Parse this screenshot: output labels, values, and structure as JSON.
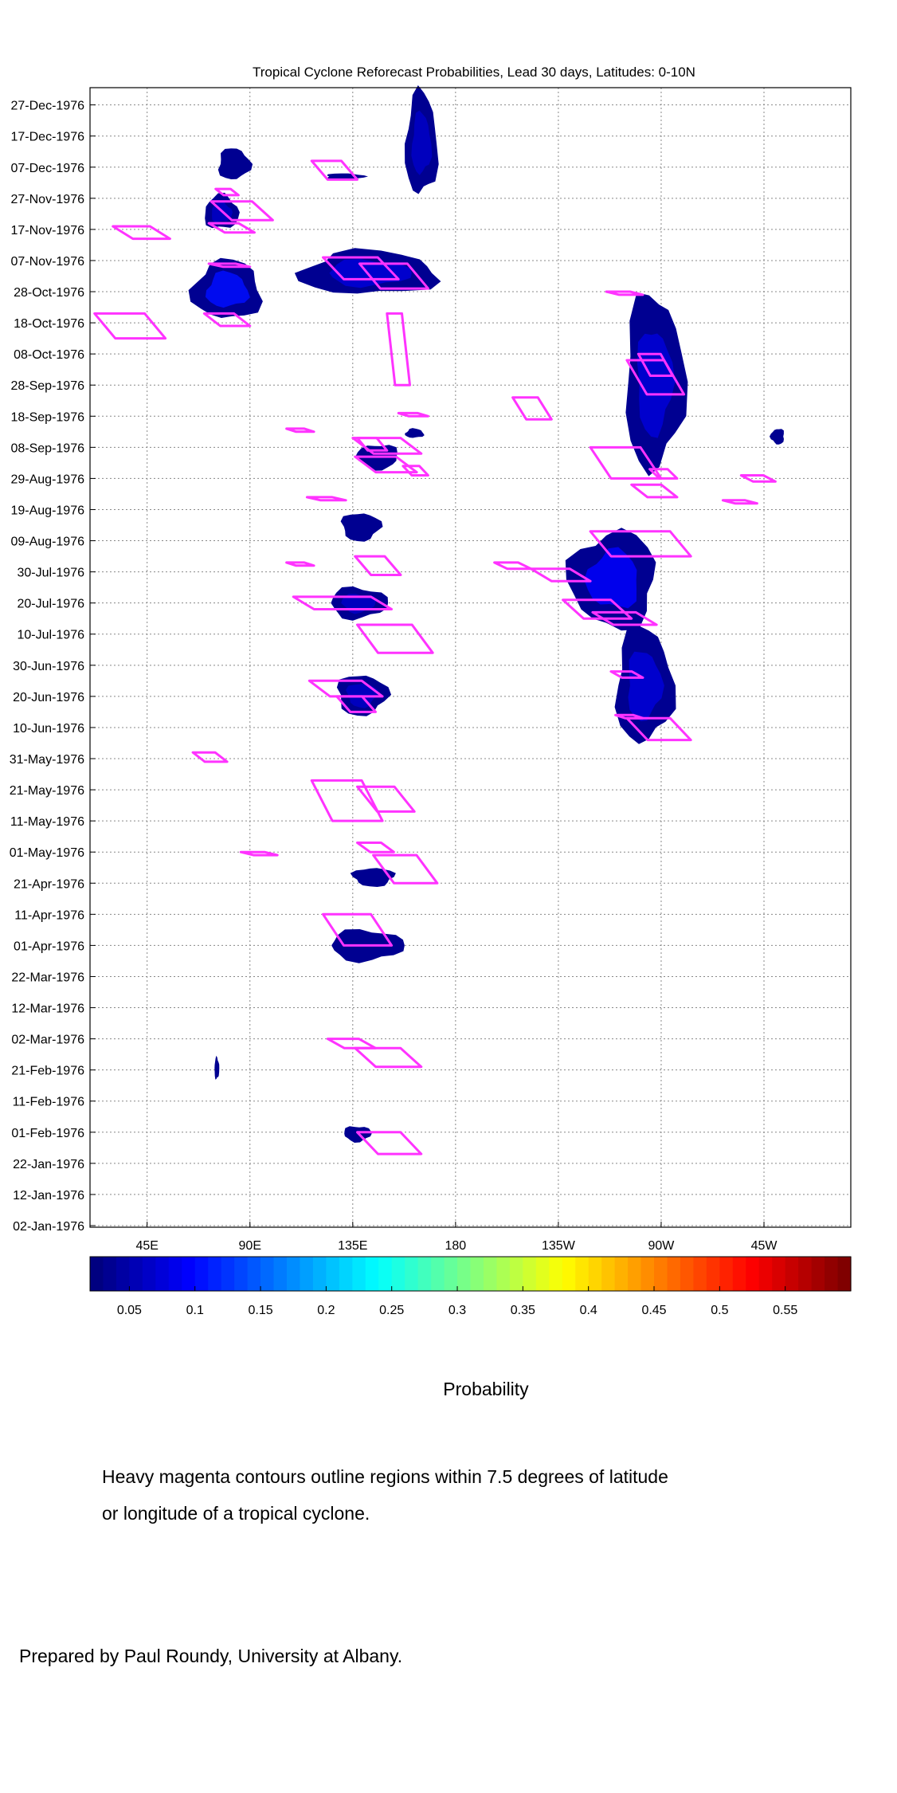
{
  "chart_data": {
    "type": "heatmap",
    "title": "Tropical Cyclone Reforecast Probabilities, Lead 30 days, Latitudes: 0-10N",
    "xlabel": "",
    "ylabel": "",
    "x_axis": {
      "unit": "degrees longitude east",
      "range": [
        20,
        353
      ],
      "ticks": [
        {
          "lon": 45,
          "label": "45E"
        },
        {
          "lon": 90,
          "label": "90E"
        },
        {
          "lon": 135,
          "label": "135E"
        },
        {
          "lon": 180,
          "label": "180"
        },
        {
          "lon": 225,
          "label": "135W"
        },
        {
          "lon": 270,
          "label": "90W"
        },
        {
          "lon": 315,
          "label": "45W"
        }
      ]
    },
    "y_axis": {
      "unit": "date",
      "range": [
        "1976-01-02",
        "1976-12-31"
      ],
      "ticks": [
        {
          "date": "1976-01-02",
          "label": "02-Jan-1976"
        },
        {
          "date": "1976-01-12",
          "label": "12-Jan-1976"
        },
        {
          "date": "1976-01-22",
          "label": "22-Jan-1976"
        },
        {
          "date": "1976-02-01",
          "label": "01-Feb-1976"
        },
        {
          "date": "1976-02-11",
          "label": "11-Feb-1976"
        },
        {
          "date": "1976-02-21",
          "label": "21-Feb-1976"
        },
        {
          "date": "1976-03-02",
          "label": "02-Mar-1976"
        },
        {
          "date": "1976-03-12",
          "label": "12-Mar-1976"
        },
        {
          "date": "1976-03-22",
          "label": "22-Mar-1976"
        },
        {
          "date": "1976-04-01",
          "label": "01-Apr-1976"
        },
        {
          "date": "1976-04-11",
          "label": "11-Apr-1976"
        },
        {
          "date": "1976-04-21",
          "label": "21-Apr-1976"
        },
        {
          "date": "1976-05-01",
          "label": "01-May-1976"
        },
        {
          "date": "1976-05-11",
          "label": "11-May-1976"
        },
        {
          "date": "1976-05-21",
          "label": "21-May-1976"
        },
        {
          "date": "1976-05-31",
          "label": "31-May-1976"
        },
        {
          "date": "1976-06-10",
          "label": "10-Jun-1976"
        },
        {
          "date": "1976-06-20",
          "label": "20-Jun-1976"
        },
        {
          "date": "1976-06-30",
          "label": "30-Jun-1976"
        },
        {
          "date": "1976-07-10",
          "label": "10-Jul-1976"
        },
        {
          "date": "1976-07-20",
          "label": "20-Jul-1976"
        },
        {
          "date": "1976-07-30",
          "label": "30-Jul-1976"
        },
        {
          "date": "1976-08-09",
          "label": "09-Aug-1976"
        },
        {
          "date": "1976-08-19",
          "label": "19-Aug-1976"
        },
        {
          "date": "1976-08-29",
          "label": "29-Aug-1976"
        },
        {
          "date": "1976-09-08",
          "label": "08-Sep-1976"
        },
        {
          "date": "1976-09-18",
          "label": "18-Sep-1976"
        },
        {
          "date": "1976-09-28",
          "label": "28-Sep-1976"
        },
        {
          "date": "1976-10-08",
          "label": "08-Oct-1976"
        },
        {
          "date": "1976-10-18",
          "label": "18-Oct-1976"
        },
        {
          "date": "1976-10-28",
          "label": "28-Oct-1976"
        },
        {
          "date": "1976-11-07",
          "label": "07-Nov-1976"
        },
        {
          "date": "1976-11-17",
          "label": "17-Nov-1976"
        },
        {
          "date": "1976-11-27",
          "label": "27-Nov-1976"
        },
        {
          "date": "1976-12-07",
          "label": "07-Dec-1976"
        },
        {
          "date": "1976-12-17",
          "label": "17-Dec-1976"
        },
        {
          "date": "1976-12-27",
          "label": "27-Dec-1976"
        }
      ]
    },
    "grid": true,
    "colorbar": {
      "label": "Probability",
      "range": [
        0.02,
        0.6
      ],
      "ticks": [
        0.05,
        0.1,
        0.15,
        0.2,
        0.25,
        0.3,
        0.35,
        0.4,
        0.45,
        0.5,
        0.55
      ],
      "tick_labels": [
        "0.05",
        "0.1",
        "0.15",
        "0.2",
        "0.25",
        "0.3",
        "0.35",
        "0.4",
        "0.45",
        "0.5",
        "0.55"
      ],
      "colormap": "jet",
      "levels": 58
    },
    "contour_color": "#ff33ff",
    "probability_regions": [
      {
        "lon": [
          65,
          95
        ],
        "date": [
          "1976-10-19",
          "1976-11-07"
        ],
        "value": 0.1
      },
      {
        "lon": [
          70,
          85
        ],
        "date": [
          "1976-11-17",
          "1976-11-28"
        ],
        "value": 0.06
      },
      {
        "lon": [
          76,
          90
        ],
        "date": [
          "1976-12-03",
          "1976-12-13"
        ],
        "value": 0.05
      },
      {
        "lon": [
          112,
          172
        ],
        "date": [
          "1976-10-27",
          "1976-11-10"
        ],
        "value": 0.07
      },
      {
        "lon": [
          158,
          172
        ],
        "date": [
          "1976-11-28",
          "1976-12-31"
        ],
        "value": 0.06
      },
      {
        "lon": [
          123,
          140
        ],
        "date": [
          "1976-12-03",
          "1976-12-05"
        ],
        "value": 0.04
      },
      {
        "lon": [
          137,
          155
        ],
        "date": [
          "1976-09-01",
          "1976-09-09"
        ],
        "value": 0.05
      },
      {
        "lon": [
          158,
          166
        ],
        "date": [
          "1976-09-11",
          "1976-09-14"
        ],
        "value": 0.04
      },
      {
        "lon": [
          130,
          147
        ],
        "date": [
          "1976-08-09",
          "1976-08-18"
        ],
        "value": 0.05
      },
      {
        "lon": [
          125,
          150
        ],
        "date": [
          "1976-07-15",
          "1976-07-25"
        ],
        "value": 0.06
      },
      {
        "lon": [
          128,
          150
        ],
        "date": [
          "1976-06-14",
          "1976-06-27"
        ],
        "value": 0.06
      },
      {
        "lon": [
          135,
          153
        ],
        "date": [
          "1976-04-20",
          "1976-04-26"
        ],
        "value": 0.04
      },
      {
        "lon": [
          125,
          157
        ],
        "date": [
          "1976-03-27",
          "1976-04-06"
        ],
        "value": 0.05
      },
      {
        "lon": [
          131,
          143
        ],
        "date": [
          "1976-01-29",
          "1976-02-03"
        ],
        "value": 0.04
      },
      {
        "lon": [
          75,
          76
        ],
        "date": [
          "1976-02-18",
          "1976-02-25"
        ],
        "value": 0.03
      },
      {
        "lon": [
          254,
          280
        ],
        "date": [
          "1976-09-01",
          "1976-10-27"
        ],
        "value": 0.07
      },
      {
        "lon": [
          230,
          268
        ],
        "date": [
          "1976-07-12",
          "1976-08-12"
        ],
        "value": 0.09
      },
      {
        "lon": [
          250,
          275
        ],
        "date": [
          "1976-06-05",
          "1976-07-12"
        ],
        "value": 0.07
      },
      {
        "lon": [
          318,
          324
        ],
        "date": [
          "1976-09-09",
          "1976-09-14"
        ],
        "value": 0.04
      }
    ],
    "cyclone_contours": [
      {
        "lon": [
          22,
          53
        ],
        "date": [
          "1976-10-13",
          "1976-10-21"
        ]
      },
      {
        "lon": [
          70,
          90
        ],
        "date": [
          "1976-10-17",
          "1976-10-21"
        ]
      },
      {
        "lon": [
          30,
          55
        ],
        "date": [
          "1976-11-14",
          "1976-11-18"
        ]
      },
      {
        "lon": [
          72,
          92
        ],
        "date": [
          "1976-11-16",
          "1976-11-19"
        ]
      },
      {
        "lon": [
          73,
          100
        ],
        "date": [
          "1976-11-20",
          "1976-11-26"
        ]
      },
      {
        "lon": [
          75,
          85
        ],
        "date": [
          "1976-11-28",
          "1976-11-30"
        ]
      },
      {
        "lon": [
          72,
          90
        ],
        "date": [
          "1976-11-05",
          "1976-11-06"
        ]
      },
      {
        "lon": [
          117,
          137
        ],
        "date": [
          "1976-12-03",
          "1976-12-09"
        ]
      },
      {
        "lon": [
          122,
          155
        ],
        "date": [
          "1976-11-01",
          "1976-11-08"
        ]
      },
      {
        "lon": [
          138,
          168
        ],
        "date": [
          "1976-10-29",
          "1976-11-06"
        ]
      },
      {
        "lon": [
          137,
          150
        ],
        "date": [
          "1976-09-07",
          "1976-09-11"
        ]
      },
      {
        "lon": [
          155,
          168
        ],
        "date": [
          "1976-09-18",
          "1976-09-19"
        ]
      },
      {
        "lon": [
          106,
          118
        ],
        "date": [
          "1976-09-13",
          "1976-09-14"
        ]
      },
      {
        "lon": [
          135,
          165
        ],
        "date": [
          "1976-09-06",
          "1976-09-11"
        ]
      },
      {
        "lon": [
          136,
          163
        ],
        "date": [
          "1976-08-31",
          "1976-09-05"
        ]
      },
      {
        "lon": [
          157,
          168
        ],
        "date": [
          "1976-08-30",
          "1976-09-02"
        ]
      },
      {
        "lon": [
          115,
          132
        ],
        "date": [
          "1976-08-22",
          "1976-08-23"
        ]
      },
      {
        "lon": [
          106,
          118
        ],
        "date": [
          "1976-08-01",
          "1976-08-02"
        ]
      },
      {
        "lon": [
          136,
          156
        ],
        "date": [
          "1976-07-29",
          "1976-08-04"
        ]
      },
      {
        "lon": [
          109,
          152
        ],
        "date": [
          "1976-07-18",
          "1976-07-22"
        ]
      },
      {
        "lon": [
          137,
          170
        ],
        "date": [
          "1976-07-04",
          "1976-07-13"
        ]
      },
      {
        "lon": [
          116,
          148
        ],
        "date": [
          "1976-06-20",
          "1976-06-25"
        ]
      },
      {
        "lon": [
          128,
          145
        ],
        "date": [
          "1976-06-15",
          "1976-06-20"
        ]
      },
      {
        "lon": [
          117,
          148
        ],
        "date": [
          "1976-05-11",
          "1976-05-24"
        ]
      },
      {
        "lon": [
          137,
          162
        ],
        "date": [
          "1976-05-14",
          "1976-05-22"
        ]
      },
      {
        "lon": [
          65,
          80
        ],
        "date": [
          "1976-05-30",
          "1976-06-02"
        ]
      },
      {
        "lon": [
          86,
          102
        ],
        "date": [
          "1976-04-30",
          "1976-05-01"
        ]
      },
      {
        "lon": [
          137,
          153
        ],
        "date": [
          "1976-05-01",
          "1976-05-04"
        ]
      },
      {
        "lon": [
          144,
          172
        ],
        "date": [
          "1976-04-21",
          "1976-04-30"
        ]
      },
      {
        "lon": [
          122,
          152
        ],
        "date": [
          "1976-04-01",
          "1976-04-11"
        ]
      },
      {
        "lon": [
          124,
          145
        ],
        "date": [
          "1976-02-28",
          "1976-03-02"
        ]
      },
      {
        "lon": [
          136,
          165
        ],
        "date": [
          "1976-02-22",
          "1976-02-28"
        ]
      },
      {
        "lon": [
          137,
          165
        ],
        "date": [
          "1976-01-25",
          "1976-02-01"
        ]
      },
      {
        "lon": [
          150,
          160
        ],
        "date": [
          "1976-09-28",
          "1976-10-21"
        ]
      },
      {
        "lon": [
          205,
          222
        ],
        "date": [
          "1976-09-17",
          "1976-09-24"
        ]
      },
      {
        "lon": [
          239,
          270
        ],
        "date": [
          "1976-08-29",
          "1976-09-08"
        ]
      },
      {
        "lon": [
          255,
          280
        ],
        "date": [
          "1976-09-25",
          "1976-10-06"
        ]
      },
      {
        "lon": [
          260,
          275
        ],
        "date": [
          "1976-10-01",
          "1976-10-08"
        ]
      },
      {
        "lon": [
          265,
          277
        ],
        "date": [
          "1976-08-29",
          "1976-09-01"
        ]
      },
      {
        "lon": [
          257,
          277
        ],
        "date": [
          "1976-08-23",
          "1976-08-27"
        ]
      },
      {
        "lon": [
          305,
          320
        ],
        "date": [
          "1976-08-28",
          "1976-08-30"
        ]
      },
      {
        "lon": [
          297,
          312
        ],
        "date": [
          "1976-08-21",
          "1976-08-22"
        ]
      },
      {
        "lon": [
          246,
          262
        ],
        "date": [
          "1976-10-27",
          "1976-10-28"
        ]
      },
      {
        "lon": [
          239,
          283
        ],
        "date": [
          "1976-08-04",
          "1976-08-12"
        ]
      },
      {
        "lon": [
          197,
          213
        ],
        "date": [
          "1976-07-31",
          "1976-08-02"
        ]
      },
      {
        "lon": [
          213,
          239
        ],
        "date": [
          "1976-07-27",
          "1976-07-31"
        ]
      },
      {
        "lon": [
          240,
          268
        ],
        "date": [
          "1976-07-13",
          "1976-07-17"
        ]
      },
      {
        "lon": [
          227,
          257
        ],
        "date": [
          "1976-07-15",
          "1976-07-21"
        ]
      },
      {
        "lon": [
          248,
          262
        ],
        "date": [
          "1976-06-26",
          "1976-06-28"
        ]
      },
      {
        "lon": [
          255,
          283
        ],
        "date": [
          "1976-06-06",
          "1976-06-13"
        ]
      },
      {
        "lon": [
          250,
          262
        ],
        "date": [
          "1976-06-13",
          "1976-06-14"
        ]
      }
    ]
  },
  "caption": {
    "line1": "Heavy magenta contours outline regions within 7.5 degrees of latitude",
    "line2": "or longitude of a tropical cyclone."
  },
  "credit": "Prepared by Paul Roundy, University at Albany."
}
